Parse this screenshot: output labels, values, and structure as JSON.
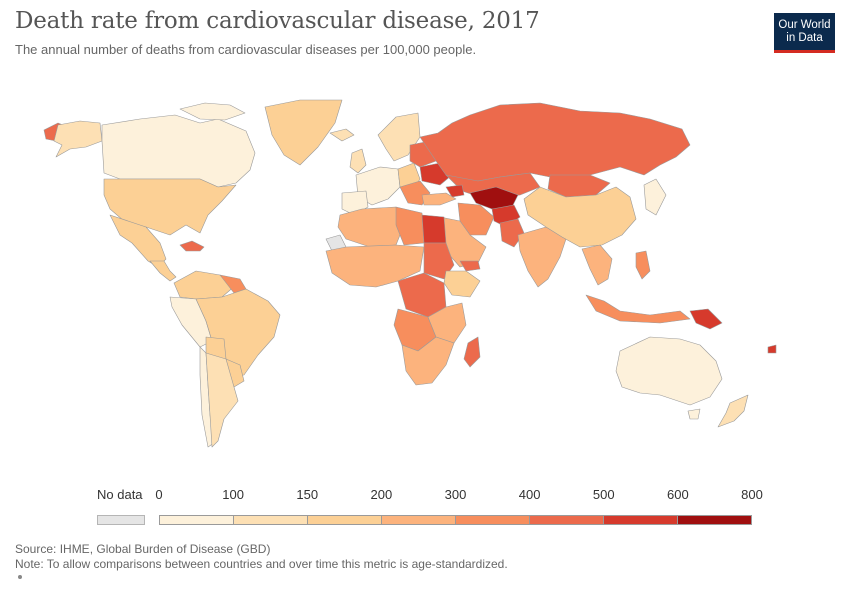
{
  "header": {
    "title": "Death rate from cardiovascular disease, 2017",
    "subtitle": "The annual number of deaths from cardiovascular diseases per 100,000 people."
  },
  "logo": {
    "line1": "Our World",
    "line2": "in Data"
  },
  "legend": {
    "no_data_label": "No data",
    "no_data_color": "#e5e5e5",
    "ticks": [
      "0",
      "100",
      "150",
      "200",
      "300",
      "400",
      "500",
      "600",
      "800"
    ],
    "colors": [
      "#fdf1db",
      "#fde0b4",
      "#fcd095",
      "#fcb37d",
      "#f78e5d",
      "#ec6a4c",
      "#d63a2c",
      "#a00f0f"
    ]
  },
  "footer": {
    "source": "Source: IHME, Global Burden of Disease (GBD)",
    "note": "Note: To allow comparisons between countries and over time this metric is age-standardized."
  },
  "map": {
    "metric": "Death rate from cardiovascular disease per 100,000",
    "year": "2017",
    "ocean_color": "#ffffff",
    "border_color": "#999999"
  }
}
